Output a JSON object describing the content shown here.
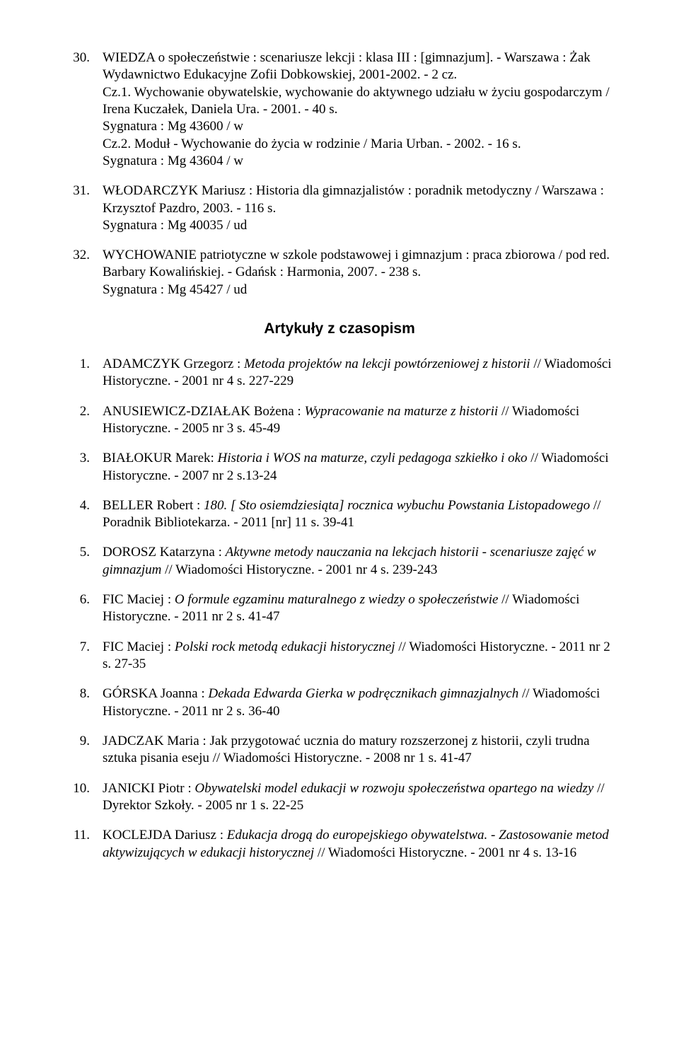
{
  "books": [
    {
      "num": "30.",
      "text": "WIEDZA o społeczeństwie : scenariusze lekcji : klasa III : [gimnazjum]. - Warszawa : Żak Wydawnictwo Edukacyjne Zofii Dobkowskiej, 2001-2002. - 2 cz.",
      "sub": [
        "Cz.1. Wychowanie obywatelskie, wychowanie do aktywnego udziału w życiu gospodarczym / Irena Kuczałek, Daniela Ura. - 2001. - 40 s.",
        "Sygnatura : Mg 43600 / w",
        "Cz.2. Moduł - Wychowanie do życia w rodzinie / Maria Urban. - 2002. - 16 s.",
        "Sygnatura : Mg 43604 / w"
      ]
    },
    {
      "num": "31.",
      "text": "WŁODARCZYK Mariusz : Historia dla gimnazjalistów : poradnik metodyczny / Warszawa : Krzysztof Pazdro, 2003. - 116 s.",
      "sub": [
        "Sygnatura : Mg 40035 / ud"
      ]
    },
    {
      "num": "32.",
      "text": "WYCHOWANIE patriotyczne w szkole podstawowej i gimnazjum : praca zbiorowa / pod red. Barbary Kowalińskiej. - Gdańsk : Harmonia, 2007. - 238 s.",
      "sub": [
        "Sygnatura : Mg 45427 / ud"
      ]
    }
  ],
  "sectionTitle": "Artykuły z czasopism",
  "articles": [
    {
      "num": "1.",
      "pre": "ADAMCZYK Grzegorz : ",
      "it": "Metoda projektów na lekcji powtórzeniowej z historii",
      "post": " // Wiadomości Historyczne. - 2001 nr 4 s. 227-229"
    },
    {
      "num": "2.",
      "pre": "ANUSIEWICZ-DZIAŁAK Bożena : ",
      "it": "Wypracowanie na maturze z historii",
      "post": " // Wiadomości Historyczne. - 2005 nr 3 s. 45-49"
    },
    {
      "num": "3.",
      "pre": "BIAŁOKUR Marek: ",
      "it": "Historia i WOS na maturze, czyli pedagoga szkiełko i oko",
      "post": " // Wiadomości Historyczne. - 2007 nr 2 s.13-24"
    },
    {
      "num": "4.",
      "pre": "BELLER Robert : ",
      "it": "180. [ Sto osiemdziesiąta] rocznica wybuchu Powstania Listopadowego",
      "post": " // Poradnik Bibliotekarza. - 2011 [nr] 11 s. 39-41"
    },
    {
      "num": "5.",
      "pre": "DOROSZ Katarzyna : ",
      "it": "Aktywne metody nauczania na lekcjach historii - scenariusze zajęć w gimnazjum",
      "post": " // Wiadomości Historyczne. - 2001  nr 4 s. 239-243"
    },
    {
      "num": "6.",
      "pre": "FIC Maciej : ",
      "it": "O formule egzaminu maturalnego z wiedzy o społeczeństwie",
      "post": " // Wiadomości Historyczne. - 2011 nr 2 s. 41-47"
    },
    {
      "num": "7.",
      "pre": " FIC Maciej : ",
      "it": "Polski rock metodą edukacji historycznej",
      "post": " // Wiadomości Historyczne. - 2011 nr 2 s. 27-35"
    },
    {
      "num": "8.",
      "pre": "GÓRSKA Joanna : ",
      "it": "Dekada Edwarda Gierka w podręcznikach gimnazjalnych",
      "post": " // Wiadomości Historyczne. - 2011 nr 2 s. 36-40"
    },
    {
      "num": "9.",
      "pre": "JADCZAK Maria : Jak przygotować ucznia do matury rozszerzonej z historii, czyli trudna sztuka pisania eseju // Wiadomości Historyczne. - 2008 nr 1 s. 41-47",
      "it": "",
      "post": ""
    },
    {
      "num": "10.",
      "pre": "JANICKI Piotr : ",
      "it": "Obywatelski model edukacji w rozwoju społeczeństwa opartego na wiedzy",
      "post": " // Dyrektor Szkoły. - 2005 nr 1 s. 22-25"
    },
    {
      "num": "11.",
      "pre": "KOCLEJDA Dariusz : ",
      "it": "Edukacja drogą do europejskiego obywatelstwa. - Zastosowanie metod aktywizujących w edukacji historycznej",
      "post": " // Wiadomości Historyczne. - 2001 nr 4 s. 13-16"
    }
  ]
}
